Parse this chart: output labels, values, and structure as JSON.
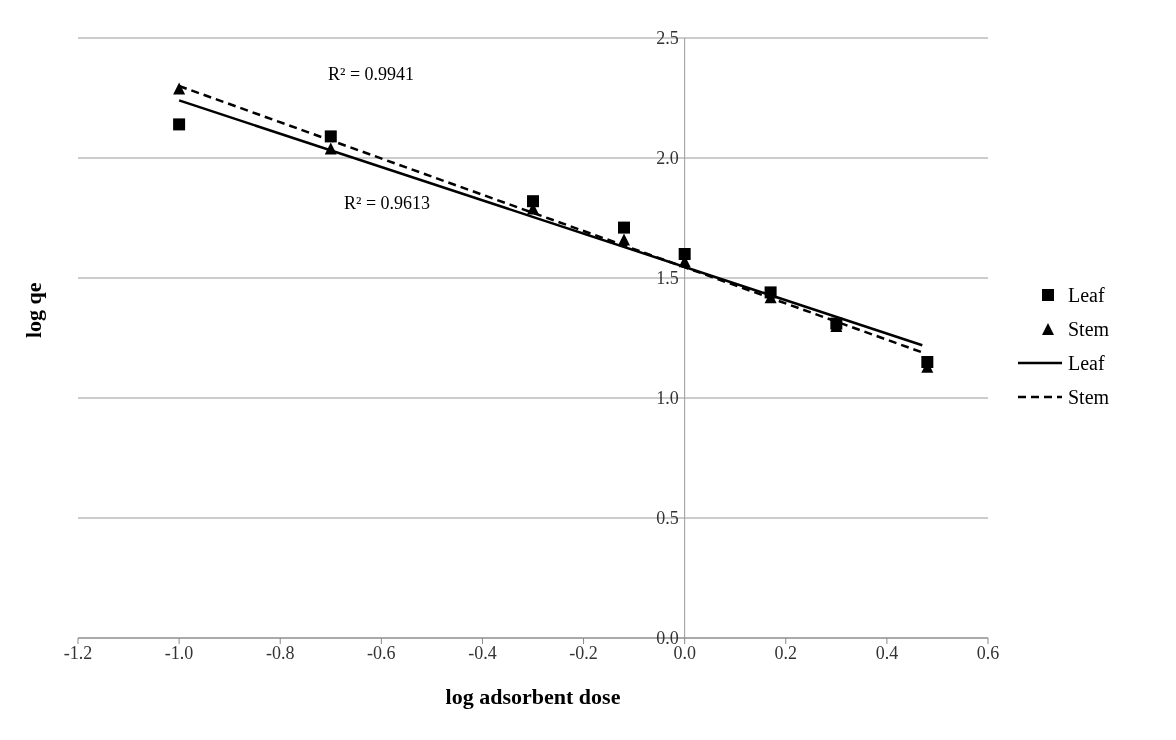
{
  "chart_data": {
    "type": "scatter",
    "xlabel": "log adsorbent dose",
    "ylabel": "log qe",
    "xlim": [
      -1.2,
      0.6
    ],
    "xticks": [
      -1.2,
      {
        "value": -1,
        "label": "-1.0"
      },
      -0.8,
      -0.6,
      -0.4,
      -0.2,
      {
        "value": 0,
        "label": "0.0"
      },
      0.2,
      0.4,
      0.6
    ],
    "ylim": [
      0,
      2.5
    ],
    "yticks": [
      {
        "value": 0,
        "label": "0.0"
      },
      0.5,
      {
        "value": 1,
        "label": "1.0"
      },
      1.5,
      {
        "value": 2,
        "label": "2.0"
      },
      2.5
    ],
    "grid": "y",
    "legend": "right",
    "annotations": [
      "R² = 0.9941",
      "R² = 0.9613"
    ],
    "series": [
      {
        "name": "Leaf",
        "marker": "square",
        "color": "#000000",
        "x": [
          -1.0,
          -0.7,
          -0.3,
          -0.12,
          0.0,
          0.17,
          0.3,
          0.48
        ],
        "values": [
          2.14,
          2.09,
          1.82,
          1.71,
          1.6,
          1.44,
          1.31,
          1.15
        ]
      },
      {
        "name": "Stem",
        "marker": "triangle",
        "color": "#000000",
        "x": [
          -1.0,
          -0.7,
          -0.3,
          -0.12,
          0.0,
          0.17,
          0.3,
          0.48
        ],
        "values": [
          2.29,
          2.04,
          1.79,
          1.66,
          1.57,
          1.42,
          1.3,
          1.13
        ]
      },
      {
        "name": "Leaf",
        "type": "line",
        "line_style": "solid",
        "color": "#000000",
        "x": [
          -1.0,
          0.47
        ],
        "values": [
          2.24,
          1.22
        ]
      },
      {
        "name": "Stem",
        "type": "line",
        "line_style": "dashed",
        "color": "#000000",
        "x": [
          -1.0,
          0.47
        ],
        "values": [
          2.3,
          1.19
        ]
      }
    ]
  }
}
